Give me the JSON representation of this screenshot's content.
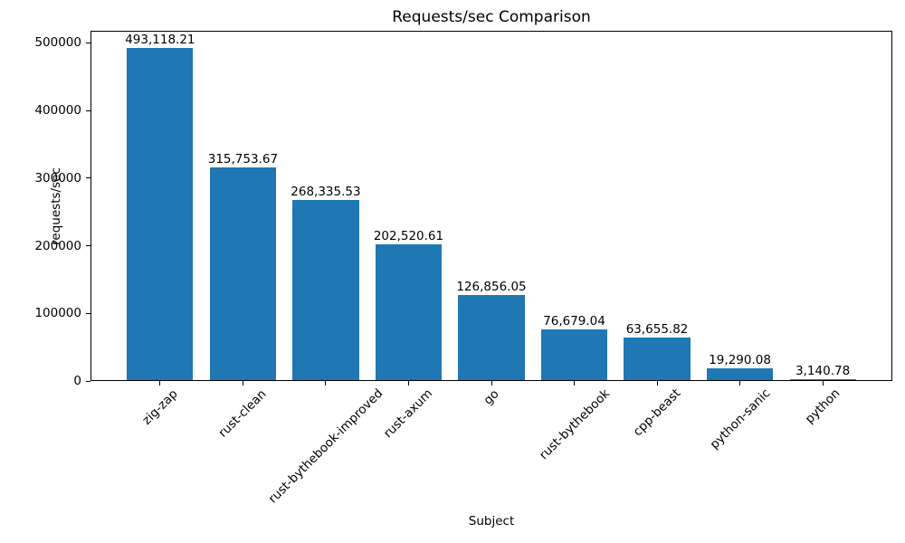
{
  "chart_data": {
    "type": "bar",
    "title": "Requests/sec Comparison",
    "xlabel": "Subject",
    "ylabel": "requests/sec",
    "categories": [
      "zig-zap",
      "rust-clean",
      "rust-bythebook-improved",
      "rust-axum",
      "go",
      "rust-bythebook",
      "cpp-beast",
      "python-sanic",
      "python"
    ],
    "values": [
      493118.21,
      315753.67,
      268335.53,
      202520.61,
      126856.05,
      76679.04,
      63655.82,
      19290.08,
      3140.78
    ],
    "value_labels": [
      "493,118.21",
      "315,753.67",
      "268,335.53",
      "202,520.61",
      "126,856.05",
      "76,679.04",
      "63,655.82",
      "19,290.08",
      "3,140.78"
    ],
    "yticks": [
      0,
      100000,
      200000,
      300000,
      400000,
      500000
    ],
    "ytick_labels": [
      "0",
      "100000",
      "200000",
      "300000",
      "400000",
      "500000"
    ],
    "ylim": [
      0,
      518000
    ],
    "bar_color": "#1f77b4",
    "text_color": "#000000",
    "background": "#ffffff",
    "grid": false,
    "legend": false,
    "x_tick_rotation_deg": 45
  }
}
